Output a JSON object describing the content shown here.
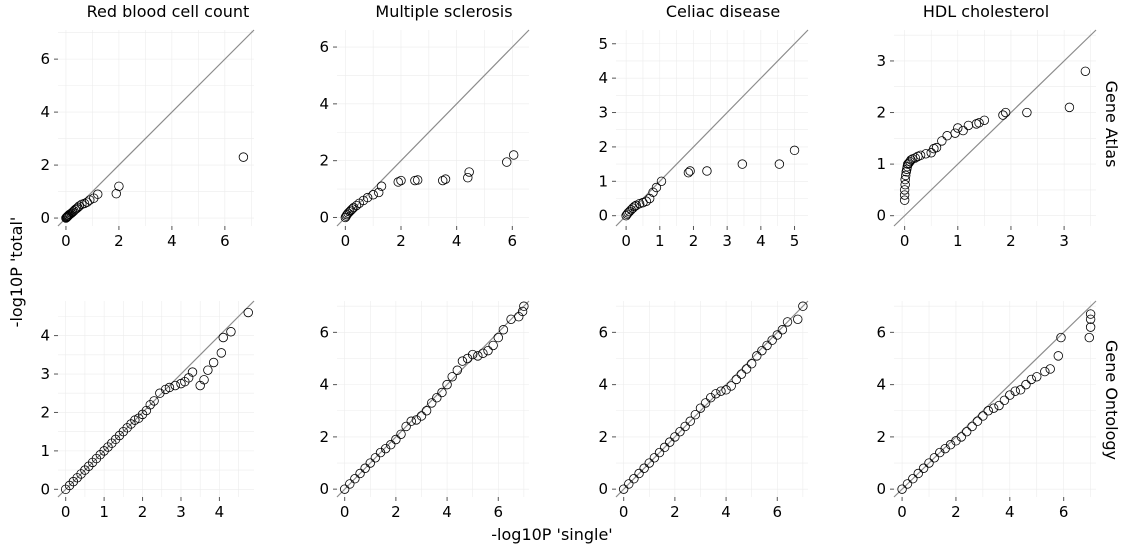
{
  "figure": {
    "column_titles": [
      "Red blood cell count",
      "Multiple sclerosis",
      "Celiac disease",
      "HDL cholesterol"
    ],
    "row_labels": [
      "Gene Atlas",
      "Gene Ontology"
    ],
    "ylabel": "-log10P  'total'",
    "xlabel": "-log10P  'single'"
  },
  "colors": {
    "reference_line": "#8c8c8c",
    "grid": "#ececec",
    "marker_stroke": "#000000",
    "marker_fill": "none"
  },
  "chart_data": [
    {
      "type": "scatter",
      "row": "Gene Atlas",
      "column": "Red blood cell count",
      "title": "Red blood cell count",
      "grid": true,
      "reference_line": "y = x",
      "xlim": [
        -0.3,
        7.1
      ],
      "ylim": [
        -0.3,
        7.1
      ],
      "xticks": [
        0,
        2,
        4,
        6
      ],
      "yticks": [
        0,
        2,
        4,
        6
      ],
      "x": [
        0.0,
        0.02,
        0.04,
        0.06,
        0.08,
        0.1,
        0.13,
        0.16,
        0.2,
        0.25,
        0.3,
        0.35,
        0.4,
        0.45,
        0.5,
        0.6,
        0.7,
        0.8,
        0.9,
        1.05,
        1.2,
        1.9,
        2.0,
        6.7
      ],
      "y": [
        0.0,
        0.02,
        0.04,
        0.06,
        0.08,
        0.1,
        0.13,
        0.15,
        0.18,
        0.22,
        0.27,
        0.32,
        0.36,
        0.4,
        0.45,
        0.52,
        0.55,
        0.6,
        0.68,
        0.75,
        0.9,
        0.92,
        1.2,
        2.3
      ]
    },
    {
      "type": "scatter",
      "row": "Gene Atlas",
      "column": "Multiple sclerosis",
      "title": "Multiple sclerosis",
      "grid": true,
      "reference_line": "y = x",
      "xlim": [
        -0.3,
        6.6
      ],
      "ylim": [
        -0.3,
        6.6
      ],
      "xticks": [
        0,
        2,
        4,
        6
      ],
      "yticks": [
        0,
        2,
        4,
        6
      ],
      "x": [
        0.0,
        0.03,
        0.06,
        0.1,
        0.15,
        0.2,
        0.25,
        0.3,
        0.4,
        0.5,
        0.65,
        0.8,
        1.0,
        1.2,
        1.3,
        1.9,
        2.0,
        2.5,
        2.6,
        3.5,
        3.6,
        4.4,
        4.45,
        5.8,
        6.05
      ],
      "y": [
        0.0,
        0.05,
        0.1,
        0.15,
        0.2,
        0.25,
        0.3,
        0.35,
        0.42,
        0.5,
        0.6,
        0.7,
        0.8,
        0.88,
        1.1,
        1.25,
        1.3,
        1.3,
        1.32,
        1.3,
        1.35,
        1.4,
        1.6,
        1.95,
        2.2
      ]
    },
    {
      "type": "scatter",
      "row": "Gene Atlas",
      "column": "Celiac disease",
      "title": "Celiac disease",
      "grid": true,
      "reference_line": "y = x",
      "xlim": [
        -0.3,
        5.4
      ],
      "ylim": [
        -0.3,
        5.4
      ],
      "xticks": [
        0,
        1,
        2,
        3,
        4,
        5
      ],
      "yticks": [
        0,
        1,
        2,
        3,
        4,
        5
      ],
      "x": [
        0.0,
        0.03,
        0.06,
        0.1,
        0.15,
        0.2,
        0.25,
        0.3,
        0.4,
        0.5,
        0.6,
        0.7,
        0.8,
        0.9,
        1.05,
        1.85,
        1.9,
        2.4,
        3.45,
        4.55,
        5.0
      ],
      "y": [
        0.0,
        0.04,
        0.08,
        0.12,
        0.17,
        0.22,
        0.27,
        0.3,
        0.35,
        0.38,
        0.42,
        0.5,
        0.68,
        0.82,
        1.0,
        1.25,
        1.3,
        1.3,
        1.5,
        1.5,
        1.9
      ]
    },
    {
      "type": "scatter",
      "row": "Gene Atlas",
      "column": "HDL cholesterol",
      "title": "HDL cholesterol",
      "row_label": "Gene Atlas",
      "grid": true,
      "reference_line": "y = x",
      "xlim": [
        -0.2,
        3.6
      ],
      "ylim": [
        -0.2,
        3.6
      ],
      "xticks": [
        0,
        1,
        2,
        3
      ],
      "yticks": [
        0,
        1,
        2,
        3
      ],
      "x": [
        0.0,
        0.0,
        0.0,
        0.01,
        0.01,
        0.02,
        0.03,
        0.04,
        0.05,
        0.06,
        0.08,
        0.1,
        0.12,
        0.15,
        0.2,
        0.25,
        0.3,
        0.4,
        0.5,
        0.55,
        0.6,
        0.7,
        0.8,
        0.95,
        1.0,
        1.1,
        1.2,
        1.35,
        1.4,
        1.5,
        1.85,
        1.9,
        2.3,
        3.1,
        3.4
      ],
      "y": [
        0.3,
        0.4,
        0.5,
        0.6,
        0.7,
        0.78,
        0.85,
        0.9,
        0.95,
        1.0,
        1.02,
        1.05,
        1.08,
        1.1,
        1.12,
        1.15,
        1.17,
        1.2,
        1.22,
        1.3,
        1.32,
        1.45,
        1.55,
        1.6,
        1.7,
        1.65,
        1.75,
        1.78,
        1.8,
        1.85,
        1.95,
        2.0,
        2.0,
        2.1,
        2.8
      ]
    },
    {
      "type": "scatter",
      "row": "Gene Ontology",
      "column": "Red blood cell count",
      "grid": true,
      "reference_line": "y = x",
      "xlim": [
        -0.2,
        4.9
      ],
      "ylim": [
        -0.2,
        4.9
      ],
      "xticks": [
        0,
        1,
        2,
        3,
        4
      ],
      "yticks": [
        0,
        1,
        2,
        3,
        4
      ],
      "x": [
        0.0,
        0.1,
        0.2,
        0.3,
        0.4,
        0.5,
        0.6,
        0.7,
        0.8,
        0.9,
        1.0,
        1.1,
        1.2,
        1.3,
        1.4,
        1.5,
        1.6,
        1.7,
        1.8,
        1.9,
        2.0,
        2.1,
        2.2,
        2.3,
        2.45,
        2.6,
        2.7,
        2.85,
        3.0,
        3.1,
        3.2,
        3.3,
        3.5,
        3.6,
        3.7,
        3.85,
        4.05,
        4.1,
        4.3,
        4.75
      ],
      "y": [
        0.0,
        0.1,
        0.2,
        0.3,
        0.4,
        0.5,
        0.6,
        0.7,
        0.8,
        0.9,
        1.0,
        1.1,
        1.2,
        1.3,
        1.4,
        1.5,
        1.6,
        1.7,
        1.8,
        1.85,
        1.95,
        2.05,
        2.2,
        2.3,
        2.5,
        2.6,
        2.65,
        2.7,
        2.75,
        2.8,
        2.9,
        3.05,
        2.7,
        2.85,
        3.1,
        3.3,
        3.55,
        3.95,
        4.1,
        4.6
      ]
    },
    {
      "type": "scatter",
      "row": "Gene Ontology",
      "column": "Multiple sclerosis",
      "grid": true,
      "reference_line": "y = x",
      "xlim": [
        -0.3,
        7.2
      ],
      "ylim": [
        -0.3,
        7.2
      ],
      "xticks": [
        0,
        2,
        4,
        6
      ],
      "yticks": [
        0,
        2,
        4,
        6
      ],
      "x": [
        0.0,
        0.2,
        0.4,
        0.6,
        0.8,
        1.0,
        1.2,
        1.4,
        1.6,
        1.8,
        2.0,
        2.2,
        2.4,
        2.6,
        2.8,
        3.0,
        3.2,
        3.4,
        3.6,
        3.8,
        4.0,
        4.2,
        4.4,
        4.6,
        4.8,
        5.0,
        5.2,
        5.4,
        5.6,
        5.8,
        6.0,
        6.2,
        6.5,
        6.8,
        6.95,
        7.0
      ],
      "y": [
        0.0,
        0.2,
        0.4,
        0.6,
        0.8,
        1.0,
        1.2,
        1.4,
        1.55,
        1.7,
        1.9,
        2.1,
        2.4,
        2.6,
        2.65,
        2.8,
        3.0,
        3.3,
        3.5,
        3.7,
        4.0,
        4.3,
        4.55,
        4.9,
        5.0,
        5.15,
        5.1,
        5.2,
        5.3,
        5.5,
        5.8,
        6.1,
        6.5,
        6.6,
        6.8,
        7.0
      ]
    },
    {
      "type": "scatter",
      "row": "Gene Ontology",
      "column": "Celiac disease",
      "grid": true,
      "reference_line": "y = x",
      "xlim": [
        -0.3,
        7.2
      ],
      "ylim": [
        -0.3,
        7.2
      ],
      "xticks": [
        0,
        2,
        4,
        6
      ],
      "yticks": [
        0,
        2,
        4,
        6
      ],
      "x": [
        0.0,
        0.2,
        0.4,
        0.6,
        0.8,
        1.0,
        1.2,
        1.4,
        1.6,
        1.8,
        2.0,
        2.2,
        2.4,
        2.6,
        2.8,
        3.0,
        3.2,
        3.4,
        3.6,
        3.8,
        4.0,
        4.2,
        4.4,
        4.6,
        4.8,
        5.0,
        5.2,
        5.4,
        5.6,
        5.8,
        6.0,
        6.2,
        6.4,
        6.8,
        7.0
      ],
      "y": [
        0.0,
        0.2,
        0.4,
        0.6,
        0.8,
        1.0,
        1.2,
        1.4,
        1.6,
        1.8,
        2.0,
        2.2,
        2.4,
        2.6,
        2.85,
        3.1,
        3.3,
        3.5,
        3.65,
        3.75,
        3.8,
        3.95,
        4.2,
        4.4,
        4.6,
        4.8,
        5.1,
        5.3,
        5.5,
        5.7,
        5.9,
        6.1,
        6.4,
        6.5,
        7.0
      ]
    },
    {
      "type": "scatter",
      "row": "Gene Ontology",
      "column": "HDL cholesterol",
      "row_label": "Gene Ontology",
      "grid": true,
      "reference_line": "y = x",
      "xlim": [
        -0.3,
        7.2
      ],
      "ylim": [
        -0.3,
        7.2
      ],
      "xticks": [
        0,
        2,
        4,
        6
      ],
      "yticks": [
        0,
        2,
        4,
        6
      ],
      "x": [
        0.0,
        0.2,
        0.4,
        0.6,
        0.8,
        1.0,
        1.2,
        1.4,
        1.6,
        1.8,
        2.0,
        2.2,
        2.4,
        2.6,
        2.8,
        3.0,
        3.2,
        3.4,
        3.6,
        3.8,
        4.0,
        4.2,
        4.4,
        4.6,
        4.8,
        5.0,
        5.3,
        5.5,
        5.8,
        5.9,
        6.95,
        7.0,
        7.0,
        7.0
      ],
      "y": [
        0.0,
        0.2,
        0.4,
        0.6,
        0.8,
        1.0,
        1.2,
        1.4,
        1.55,
        1.7,
        1.85,
        2.0,
        2.2,
        2.4,
        2.6,
        2.8,
        3.0,
        3.1,
        3.2,
        3.4,
        3.6,
        3.75,
        3.8,
        4.0,
        4.2,
        4.3,
        4.5,
        4.6,
        5.1,
        5.8,
        5.8,
        6.2,
        6.5,
        6.7
      ]
    }
  ]
}
